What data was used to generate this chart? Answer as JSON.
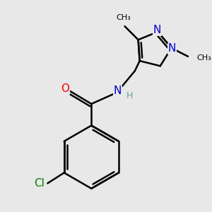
{
  "background_color": "#e8e8e8",
  "bond_color": "#000000",
  "bond_width": 1.8,
  "atom_colors": {
    "N": "#0000cc",
    "O": "#ff0000",
    "Cl": "#008000",
    "H": "#5f9ea0",
    "C": "#000000"
  },
  "font_size_atom": 10,
  "font_size_methyl": 9
}
